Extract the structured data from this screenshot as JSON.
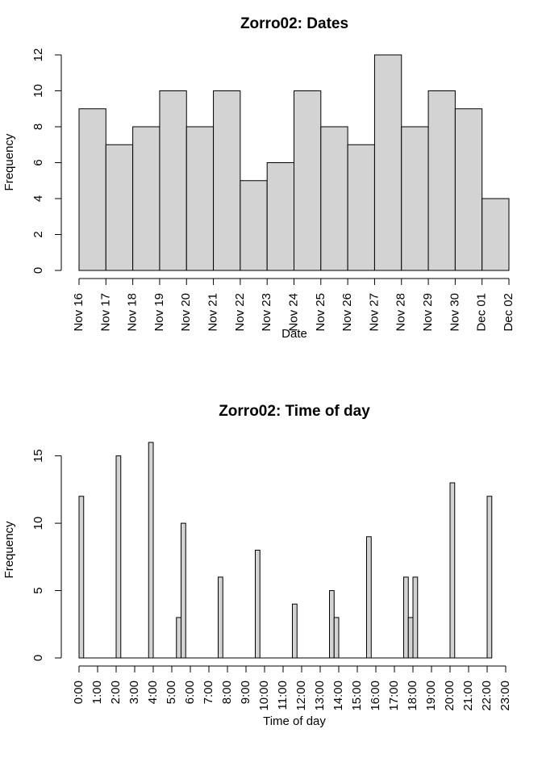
{
  "chart_data": [
    {
      "type": "bar",
      "title": "Zorro02: Dates",
      "xlabel": "Date",
      "ylabel": "Frequency",
      "ylim": [
        0,
        12
      ],
      "yticks": [
        0,
        2,
        4,
        6,
        8,
        10,
        12
      ],
      "tick_labels": [
        "Nov 16",
        "Nov 17",
        "Nov 18",
        "Nov 19",
        "Nov 20",
        "Nov 21",
        "Nov 22",
        "Nov 23",
        "Nov 24",
        "Nov 25",
        "Nov 26",
        "Nov 27",
        "Nov 28",
        "Nov 29",
        "Nov 30",
        "Dec 01",
        "Dec 02"
      ],
      "values": [
        9,
        7,
        8,
        10,
        8,
        10,
        5,
        6,
        10,
        8,
        7,
        12,
        8,
        10,
        9,
        4
      ],
      "bar_color": "#d3d3d3",
      "grid": false
    },
    {
      "type": "bar",
      "title": "Zorro02: Time of day",
      "xlabel": "Time of day",
      "ylabel": "Frequency",
      "ylim": [
        0,
        16
      ],
      "yticks": [
        0,
        5,
        10,
        15
      ],
      "tick_labels": [
        "0:00",
        "1:00",
        "2:00",
        "3:00",
        "4:00",
        "5:00",
        "6:00",
        "7:00",
        "8:00",
        "9:00",
        "10:00",
        "11:00",
        "12:00",
        "13:00",
        "14:00",
        "15:00",
        "16:00",
        "17:00",
        "18:00",
        "19:00",
        "20:00",
        "21:00",
        "22:00",
        "23:00"
      ],
      "bin_width_minutes": 15,
      "series": [
        {
          "time": "0:00",
          "value": 12
        },
        {
          "time": "2:00",
          "value": 15
        },
        {
          "time": "3:45",
          "value": 16
        },
        {
          "time": "5:15",
          "value": 3
        },
        {
          "time": "5:30",
          "value": 10
        },
        {
          "time": "7:30",
          "value": 6
        },
        {
          "time": "9:30",
          "value": 8
        },
        {
          "time": "11:30",
          "value": 4
        },
        {
          "time": "13:30",
          "value": 5
        },
        {
          "time": "13:45",
          "value": 3
        },
        {
          "time": "15:30",
          "value": 9
        },
        {
          "time": "17:30",
          "value": 6
        },
        {
          "time": "17:45",
          "value": 3
        },
        {
          "time": "18:00",
          "value": 6
        },
        {
          "time": "20:00",
          "value": 13
        },
        {
          "time": "22:00",
          "value": 12
        }
      ],
      "bar_color": "#d3d3d3",
      "grid": false
    }
  ]
}
